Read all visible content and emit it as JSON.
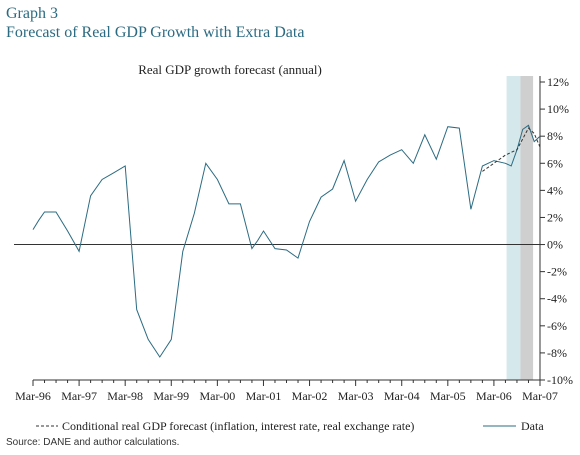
{
  "header": {
    "graph_number": "Graph 3",
    "title": "Forecast of Real GDP Growth with Extra Data"
  },
  "source_note": "Source: DANE and author calculations.",
  "colors": {
    "data_line": "#2b6b82",
    "forecast_line": "#333333",
    "shade_light": "#d5e8ec",
    "shade_dark": "#cfcfcf",
    "title": "#2b6b82"
  },
  "chart_data": {
    "type": "line",
    "title": "Real GDP growth forecast (annual)",
    "xlabel": "",
    "ylabel": "",
    "ylim": [
      -10,
      12
    ],
    "y_axis_side": "right",
    "y_ticks": [
      "12%",
      "10%",
      "8%",
      "6%",
      "4%",
      "2%",
      "0%",
      "-2%",
      "-4%",
      "-6%",
      "-8%",
      "-10%"
    ],
    "y_tick_values": [
      12,
      10,
      8,
      6,
      4,
      2,
      0,
      -2,
      -4,
      -6,
      -8,
      -10
    ],
    "x_tick_labels": [
      "Mar-96",
      "Mar-97",
      "Mar-98",
      "Mar-99",
      "Mar-00",
      "Mar-01",
      "Mar-02",
      "Mar-03",
      "Mar-04",
      "Mar-05",
      "Mar-06",
      "Mar-07"
    ],
    "x_range_quarters": [
      0,
      44
    ],
    "shaded_regions": [
      {
        "from_quarter": 41.1,
        "to_quarter": 42.3,
        "color": "light"
      },
      {
        "from_quarter": 42.3,
        "to_quarter": 43.4,
        "color": "dark"
      }
    ],
    "series": [
      {
        "name": "Data",
        "style": "solid",
        "x_quarters": [
          0,
          0.5,
          1,
          2,
          3,
          4,
          5,
          6,
          7,
          8,
          9,
          10,
          11,
          12,
          13,
          14,
          15,
          16,
          17,
          18,
          19,
          19.5,
          20,
          21,
          22,
          23,
          24,
          25,
          26,
          27,
          28,
          29,
          30,
          31,
          32,
          33,
          34,
          35,
          36,
          37,
          38,
          39,
          40,
          41,
          41.5,
          42,
          42.5,
          43,
          43.5,
          44
        ],
        "values": [
          1.1,
          1.8,
          2.4,
          2.4,
          1.0,
          -0.5,
          3.6,
          4.8,
          5.3,
          5.8,
          -4.8,
          -7.0,
          -8.3,
          -7.0,
          -0.5,
          2.3,
          6.0,
          4.8,
          3.0,
          3.0,
          -0.3,
          0.3,
          1.0,
          -0.3,
          -0.4,
          -1.0,
          1.7,
          3.5,
          4.1,
          6.2,
          3.2,
          4.8,
          6.1,
          6.6,
          7.0,
          6.0,
          8.1,
          6.3,
          8.7,
          8.6,
          2.6,
          5.8,
          6.2,
          6.0,
          5.8,
          7.0,
          8.5,
          8.8,
          7.6,
          8.0
        ]
      },
      {
        "name": "Conditional real GDP forecast (inflation, interest rate, real exchange rate)",
        "style": "dashed",
        "x_quarters": [
          39,
          40,
          41,
          42,
          42.5,
          43,
          43.5,
          44
        ],
        "values": [
          5.4,
          6.0,
          6.6,
          7.0,
          7.8,
          8.6,
          8.2,
          7.2
        ]
      }
    ]
  }
}
